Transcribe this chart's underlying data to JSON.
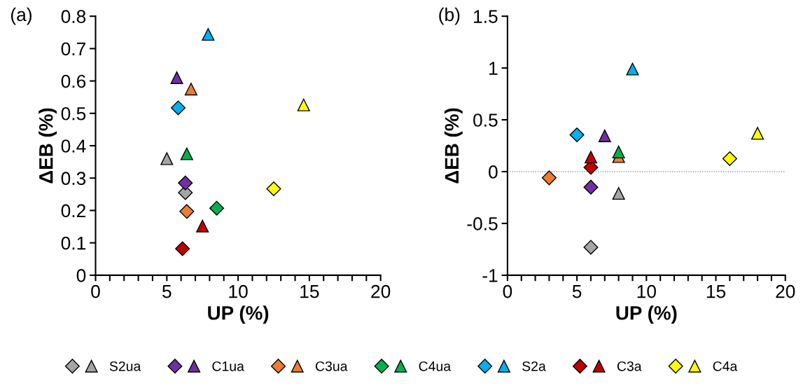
{
  "chart_data": [
    {
      "type": "scatter",
      "title": "(a)",
      "xlabel": "UP (%)",
      "ylabel": "ΔEB (%)",
      "xlim": [
        0,
        20
      ],
      "ylim": [
        0,
        0.8
      ],
      "xticks": [
        0,
        {
          "value": 1,
          "label": null
        },
        {
          "value": 2,
          "label": null
        },
        {
          "value": 3,
          "label": null
        },
        {
          "value": 4,
          "label": null
        },
        5,
        {
          "value": 6,
          "label": null
        },
        {
          "value": 7,
          "label": null
        },
        {
          "value": 8,
          "label": null
        },
        {
          "value": 9,
          "label": null
        },
        10,
        {
          "value": 11,
          "label": null
        },
        {
          "value": 12,
          "label": null
        },
        {
          "value": 13,
          "label": null
        },
        {
          "value": 14,
          "label": null
        },
        15,
        {
          "value": 16,
          "label": null
        },
        {
          "value": 17,
          "label": null
        },
        {
          "value": 18,
          "label": null
        },
        {
          "value": 19,
          "label": null
        },
        20
      ],
      "yticks": [
        0,
        0.1,
        0.2,
        0.3,
        0.4,
        0.5,
        0.6,
        0.7,
        0.8
      ],
      "grid": false,
      "legend": "bottom",
      "series": [
        {
          "name": "S2ua",
          "color": "#a5a5a5",
          "marker": "diamond",
          "x": [
            6.3
          ],
          "values": [
            0.255
          ]
        },
        {
          "color": "#a5a5a5",
          "marker": "triangle",
          "x": [
            5.0
          ],
          "values": [
            0.36
          ]
        },
        {
          "name": "C1ua",
          "color": "#7030a0",
          "marker": "diamond",
          "x": [
            6.3
          ],
          "values": [
            0.285
          ]
        },
        {
          "color": "#7030a0",
          "marker": "triangle",
          "x": [
            5.7
          ],
          "values": [
            0.61
          ]
        },
        {
          "name": "C3ua",
          "color": "#ed7d31",
          "marker": "diamond",
          "x": [
            6.4
          ],
          "values": [
            0.197
          ]
        },
        {
          "color": "#ed7d31",
          "marker": "triangle",
          "x": [
            6.7
          ],
          "values": [
            0.575
          ]
        },
        {
          "name": "C4ua",
          "color": "#00b050",
          "marker": "diamond",
          "x": [
            8.5
          ],
          "values": [
            0.207
          ]
        },
        {
          "color": "#00b050",
          "marker": "triangle",
          "x": [
            6.4
          ],
          "values": [
            0.375
          ]
        },
        {
          "name": "S2a",
          "color": "#00b0f0",
          "marker": "diamond",
          "x": [
            5.8
          ],
          "values": [
            0.517
          ]
        },
        {
          "color": "#00b0f0",
          "marker": "triangle",
          "x": [
            7.9
          ],
          "values": [
            0.744
          ]
        },
        {
          "name": "C3a",
          "color": "#c00000",
          "marker": "diamond",
          "x": [
            6.1
          ],
          "values": [
            0.082
          ]
        },
        {
          "color": "#c00000",
          "marker": "triangle",
          "x": [
            7.5
          ],
          "values": [
            0.152
          ]
        },
        {
          "name": "C4a",
          "color": "#ffff00",
          "marker": "diamond",
          "x": [
            12.5
          ],
          "values": [
            0.267
          ]
        },
        {
          "color": "#ffff00",
          "marker": "triangle",
          "x": [
            14.6
          ],
          "values": [
            0.526
          ]
        }
      ]
    },
    {
      "type": "scatter",
      "title": "(b)",
      "xlabel": "UP (%)",
      "ylabel": "ΔEB (%)",
      "xlim": [
        0,
        20
      ],
      "ylim": [
        -1,
        1.5
      ],
      "xticks": [
        0,
        {
          "value": 1,
          "label": null
        },
        {
          "value": 2,
          "label": null
        },
        {
          "value": 3,
          "label": null
        },
        {
          "value": 4,
          "label": null
        },
        5,
        {
          "value": 6,
          "label": null
        },
        {
          "value": 7,
          "label": null
        },
        {
          "value": 8,
          "label": null
        },
        {
          "value": 9,
          "label": null
        },
        10,
        {
          "value": 11,
          "label": null
        },
        {
          "value": 12,
          "label": null
        },
        {
          "value": 13,
          "label": null
        },
        {
          "value": 14,
          "label": null
        },
        15,
        {
          "value": 16,
          "label": null
        },
        {
          "value": 17,
          "label": null
        },
        {
          "value": 18,
          "label": null
        },
        {
          "value": 19,
          "label": null
        },
        20
      ],
      "yticks": [
        -1,
        -0.5,
        0,
        0.5,
        1,
        1.5
      ],
      "grid": false,
      "ref_lines": [
        {
          "axis": "y",
          "value": 0,
          "color": "#808080",
          "line_style": "dotted"
        }
      ],
      "series": [
        {
          "name": "S2ua",
          "color": "#a5a5a5",
          "marker": "diamond",
          "x": [
            6
          ],
          "values": [
            -0.73
          ]
        },
        {
          "name": "S2ua",
          "color": "#a5a5a5",
          "marker": "triangle",
          "x": [
            8
          ],
          "values": [
            -0.21
          ]
        },
        {
          "name": "C1ua",
          "color": "#7030a0",
          "marker": "diamond",
          "x": [
            6
          ],
          "values": [
            -0.15
          ]
        },
        {
          "name": "C1ua",
          "color": "#7030a0",
          "marker": "triangle",
          "x": [
            7
          ],
          "values": [
            0.345
          ]
        },
        {
          "name": "C3ua",
          "color": "#ed7d31",
          "marker": "diamond",
          "x": [
            3
          ],
          "values": [
            -0.06
          ]
        },
        {
          "name": "C3ua",
          "color": "#ed7d31",
          "marker": "triangle",
          "x": [
            8
          ],
          "values": [
            0.145
          ]
        },
        {
          "name": "C4ua",
          "color": "#00b050",
          "marker": "diamond",
          "x": [
            null
          ],
          "values": [
            null
          ]
        },
        {
          "name": "C4ua",
          "color": "#00b050",
          "marker": "triangle",
          "x": [
            8
          ],
          "values": [
            0.19
          ]
        },
        {
          "name": "S2a",
          "color": "#00b0f0",
          "marker": "diamond",
          "x": [
            5
          ],
          "values": [
            0.355
          ]
        },
        {
          "name": "S2a",
          "color": "#00b0f0",
          "marker": "triangle",
          "x": [
            9
          ],
          "values": [
            0.99
          ]
        },
        {
          "name": "C3a",
          "color": "#c00000",
          "marker": "diamond",
          "x": [
            6
          ],
          "values": [
            0.04
          ]
        },
        {
          "name": "C3a",
          "color": "#c00000",
          "marker": "triangle",
          "x": [
            6
          ],
          "values": [
            0.14
          ]
        },
        {
          "name": "C4a",
          "color": "#ffff00",
          "marker": "diamond",
          "x": [
            16
          ],
          "values": [
            0.125
          ]
        },
        {
          "name": "C4a",
          "color": "#ffff00",
          "marker": "triangle",
          "x": [
            18
          ],
          "values": [
            0.37
          ]
        }
      ]
    }
  ]
}
